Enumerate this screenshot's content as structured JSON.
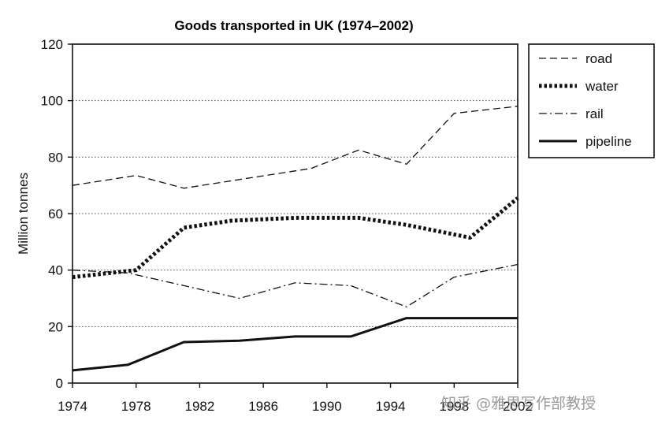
{
  "chart_data": {
    "type": "line",
    "title": "Goods transported in UK (1974–2002)",
    "xlabel": "",
    "ylabel": "Million tonnes",
    "x": [
      1974,
      1978,
      1982,
      1986,
      1990,
      1994,
      1998,
      2002
    ],
    "xlim": [
      1974,
      2002
    ],
    "ylim": [
      0,
      120
    ],
    "y_ticks": [
      "0",
      "20",
      "40",
      "60",
      "80",
      "100",
      "120"
    ],
    "x_ticks": [
      "1974",
      "1978",
      "1982",
      "1986",
      "1990",
      "1994",
      "1998",
      "2002"
    ],
    "grid": "horizontal dotted",
    "legend_position": "right",
    "series": [
      {
        "name": "road",
        "style": "dashed",
        "points": [
          [
            1974,
            70
          ],
          [
            1978,
            73.5
          ],
          [
            1981,
            69
          ],
          [
            1985,
            72.5
          ],
          [
            1989,
            76
          ],
          [
            1992,
            82.5
          ],
          [
            1995,
            77.5
          ],
          [
            1998,
            95.5
          ],
          [
            2002,
            98
          ]
        ]
      },
      {
        "name": "water",
        "style": "dotted-thick",
        "points": [
          [
            1974,
            37.5
          ],
          [
            1978,
            40
          ],
          [
            1981,
            55
          ],
          [
            1984,
            57.5
          ],
          [
            1988,
            58.5
          ],
          [
            1992,
            58.5
          ],
          [
            1995,
            56
          ],
          [
            1999,
            51.5
          ],
          [
            2002,
            65.5
          ]
        ]
      },
      {
        "name": "rail",
        "style": "dash-dot",
        "points": [
          [
            1974,
            40
          ],
          [
            1977.5,
            39
          ],
          [
            1981,
            34.5
          ],
          [
            1984.5,
            30
          ],
          [
            1988,
            35.5
          ],
          [
            1991.5,
            34.5
          ],
          [
            1995,
            27
          ],
          [
            1998,
            37.5
          ],
          [
            2002,
            42
          ]
        ]
      },
      {
        "name": "pipeline",
        "style": "solid",
        "points": [
          [
            1974,
            4.5
          ],
          [
            1977.5,
            6.5
          ],
          [
            1981,
            14.5
          ],
          [
            1984.5,
            15
          ],
          [
            1988,
            16.5
          ],
          [
            1991.5,
            16.5
          ],
          [
            1995,
            23
          ],
          [
            1998,
            23
          ],
          [
            2002,
            23
          ]
        ]
      }
    ]
  },
  "watermark": {
    "text": "知乎 @雅思写作部教授"
  }
}
